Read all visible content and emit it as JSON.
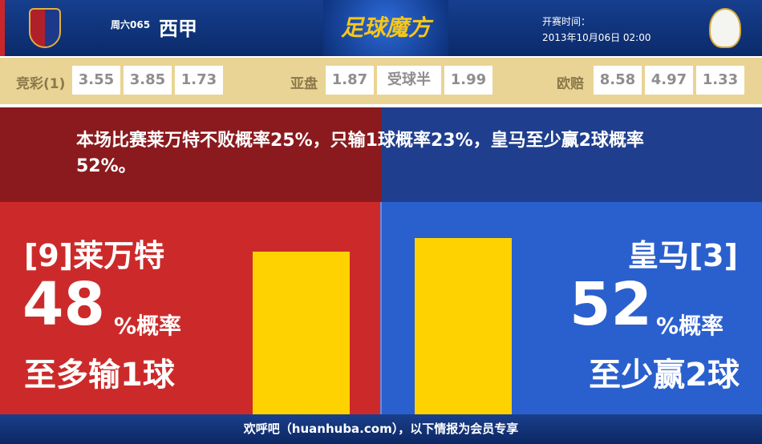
{
  "header": {
    "round": "周六065",
    "league": "西甲",
    "brand": "足球魔方",
    "kickoff_label": "开赛时间：",
    "kickoff_time": "2013年10月06日 02:00"
  },
  "odds": {
    "jingcai_label": "竞彩(1)",
    "jingcai": [
      "3.55",
      "3.85",
      "1.73"
    ],
    "yapan_label": "亚盘",
    "yapan": [
      "1.87",
      "受球半",
      "1.99"
    ],
    "oupei_label": "欧赔",
    "oupei": [
      "8.58",
      "4.97",
      "1.33"
    ]
  },
  "summary": "本场比赛莱万特不败概率25%，只输1球概率23%，皇马至少赢2球概率52%。",
  "home": {
    "name": "[9]莱万特",
    "pct": "48",
    "pct_suffix": "%概率",
    "outcome": "至多输1球",
    "value": 48
  },
  "away": {
    "name": "皇马[3]",
    "pct": "52",
    "pct_suffix": "%概率",
    "outcome": "至少赢2球",
    "value": 52
  },
  "colors": {
    "home": "#cc2a2a",
    "away": "#2a5fce",
    "bar": "#fdd200"
  },
  "footer": "欢呼吧（huanhuba.com），以下情报为会员专享"
}
